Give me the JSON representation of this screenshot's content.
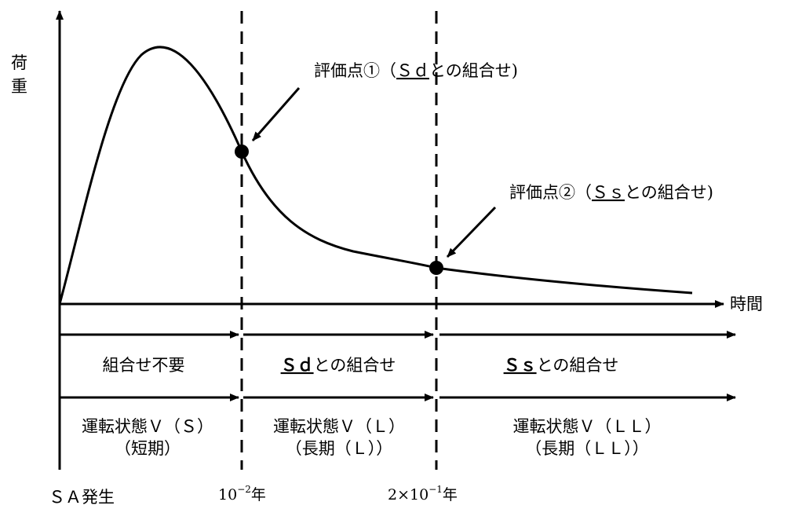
{
  "axes": {
    "y_label_line1": "荷",
    "y_label_line2": "重",
    "x_label": "時間"
  },
  "evaluation_points": {
    "p1": {
      "prefix": "評価点①（",
      "key": "Ｓｄ",
      "suffix": "との組合せ)"
    },
    "p2": {
      "prefix": "評価点②（",
      "key": "Ｓｓ",
      "suffix": "との組合せ)"
    }
  },
  "periods": {
    "row1": {
      "p1": "組合せ不要",
      "p2": {
        "key": "Ｓｄ",
        "suffix": "との組合せ"
      },
      "p3": {
        "key": "Ｓｓ",
        "suffix": "との組合せ"
      }
    },
    "row2": {
      "p1": {
        "line1": "運転状態Ｖ（Ｓ）",
        "line2": "（短期）"
      },
      "p2": {
        "line1": "運転状態Ｖ（Ｌ）",
        "line2": "（長期（Ｌ））"
      },
      "p3": {
        "line1": "運転状態Ｖ（ＬＬ）",
        "line2": "（長期（ＬＬ））"
      }
    }
  },
  "time_markers": {
    "start": "ＳＡ発生",
    "t1": {
      "base": "10",
      "exp": "−2",
      "unit": "年"
    },
    "t2": {
      "base": "2×10",
      "exp": "−1",
      "unit": "年"
    }
  }
}
